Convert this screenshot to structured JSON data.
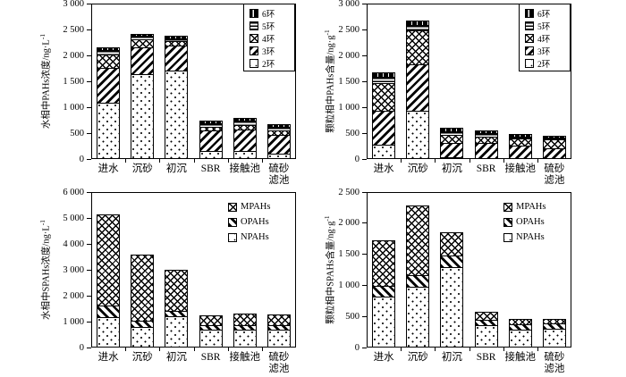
{
  "figure": {
    "background": "#ffffff",
    "ink": "#000000"
  },
  "chart_data": [
    {
      "type": "bar",
      "stacked": true,
      "position": "top-left",
      "ylabel": "水相中PAHs浓度/ng·L",
      "ylabel_sup": "-1",
      "ylim": [
        0,
        3000
      ],
      "ytick_values": [
        3000,
        2500,
        2000,
        1500,
        1000,
        500,
        0
      ],
      "ytick_labels": [
        "3 000",
        "2 500",
        "2 000",
        "1 500",
        "1 000",
        "500",
        "0"
      ],
      "grid": "off",
      "legend_boxed": true,
      "legend_position": "top-right",
      "categories": [
        "进水",
        "沉砂",
        "初沉",
        "SBR",
        "接触池",
        "硫砂\n滤池"
      ],
      "category_keys": [
        "inflow",
        "grit-tank",
        "primary-sed",
        "sbr",
        "contact-tank",
        "sand-filter"
      ],
      "legend": [
        {
          "label": "6环",
          "pattern": "blackv"
        },
        {
          "label": "5环",
          "pattern": "hlines"
        },
        {
          "label": "4环",
          "pattern": "cross"
        },
        {
          "label": "3环",
          "pattern": "diag-up"
        },
        {
          "label": "2环",
          "pattern": "dots"
        }
      ],
      "series": [
        {
          "key": "ring2",
          "name": "2环",
          "pattern": "dots",
          "values": [
            1100,
            1650,
            1730,
            180,
            170,
            120
          ]
        },
        {
          "key": "ring3",
          "name": "3环",
          "pattern": "diag-up",
          "values": [
            670,
            520,
            470,
            380,
            420,
            370
          ]
        },
        {
          "key": "ring4",
          "name": "4环",
          "pattern": "cross",
          "values": [
            270,
            160,
            100,
            80,
            90,
            80
          ]
        },
        {
          "key": "ring5",
          "name": "5环",
          "pattern": "hlines",
          "values": [
            80,
            60,
            50,
            60,
            75,
            70
          ]
        },
        {
          "key": "ring6",
          "name": "6环",
          "pattern": "blackv",
          "values": [
            40,
            25,
            25,
            35,
            45,
            35
          ]
        }
      ]
    },
    {
      "type": "bar",
      "stacked": true,
      "position": "top-right",
      "ylabel": "颗粒相中PAHs含量/ng·g",
      "ylabel_sup": "-1",
      "ylim": [
        0,
        3000
      ],
      "ytick_values": [
        3000,
        2500,
        2000,
        1500,
        1000,
        500,
        0
      ],
      "ytick_labels": [
        "3 000",
        "2 500",
        "2 000",
        "1 500",
        "1 000",
        "500",
        "0"
      ],
      "grid": "off",
      "legend_boxed": true,
      "legend_position": "top-right",
      "categories": [
        "进水",
        "沉砂",
        "初沉",
        "SBR",
        "接触池",
        "硫砂\n滤池"
      ],
      "category_keys": [
        "inflow",
        "grit-tank",
        "primary-sed",
        "sbr",
        "contact-tank",
        "sand-filter"
      ],
      "legend": [
        {
          "label": "6环",
          "pattern": "blackv"
        },
        {
          "label": "5环",
          "pattern": "hlines"
        },
        {
          "label": "4环",
          "pattern": "cross"
        },
        {
          "label": "3环",
          "pattern": "diag-up"
        },
        {
          "label": "2环",
          "pattern": "dots"
        }
      ],
      "series": [
        {
          "key": "ring2",
          "name": "2环",
          "pattern": "dots",
          "values": [
            300,
            950,
            50,
            40,
            25,
            20
          ]
        },
        {
          "key": "ring3",
          "name": "3环",
          "pattern": "diag-up",
          "values": [
            640,
            900,
            280,
            290,
            245,
            210
          ]
        },
        {
          "key": "ring4",
          "name": "4环",
          "pattern": "cross",
          "values": [
            550,
            650,
            155,
            125,
            145,
            165
          ]
        },
        {
          "key": "ring5",
          "name": "5环",
          "pattern": "hlines",
          "values": [
            110,
            100,
            70,
            55,
            40,
            40
          ]
        },
        {
          "key": "ring6",
          "name": "6环",
          "pattern": "blackv",
          "values": [
            80,
            75,
            40,
            45,
            30,
            20
          ]
        }
      ]
    },
    {
      "type": "bar",
      "stacked": true,
      "position": "bottom-left",
      "ylabel": "水相中SPAHs浓度/ng·L",
      "ylabel_sup": "-1",
      "ylim": [
        0,
        6000
      ],
      "ytick_values": [
        6000,
        5000,
        4000,
        3000,
        2000,
        1000,
        0
      ],
      "ytick_labels": [
        "6 000",
        "5 000",
        "4 000",
        "3 000",
        "2 000",
        "1 000",
        "0"
      ],
      "grid": "off",
      "legend_boxed": false,
      "legend_position": "top-right",
      "categories": [
        "进水",
        "沉砂",
        "初沉",
        "SBR",
        "接触池",
        "硫砂\n滤池"
      ],
      "category_keys": [
        "inflow",
        "grit-tank",
        "primary-sed",
        "sbr",
        "contact-tank",
        "sand-filter"
      ],
      "legend": [
        {
          "label": "MPAHs",
          "pattern": "cross"
        },
        {
          "label": "OPAHs",
          "pattern": "diag-down"
        },
        {
          "label": "NPAHs",
          "pattern": "dots"
        }
      ],
      "series": [
        {
          "key": "npahs",
          "name": "NPAHs",
          "pattern": "dots",
          "values": [
            1200,
            830,
            1230,
            740,
            710,
            730
          ]
        },
        {
          "key": "opahs",
          "name": "OPAHs",
          "pattern": "diag-down",
          "values": [
            450,
            250,
            210,
            160,
            190,
            170
          ]
        },
        {
          "key": "mpahs",
          "name": "MPAHs",
          "pattern": "cross",
          "values": [
            3500,
            2500,
            1560,
            330,
            400,
            380
          ]
        }
      ]
    },
    {
      "type": "bar",
      "stacked": true,
      "position": "bottom-right",
      "ylabel": "颗粒相中SPAHs含量/ng·g",
      "ylabel_sup": "-1",
      "ylim": [
        0,
        2500
      ],
      "ytick_values": [
        2500,
        2000,
        1500,
        1000,
        500,
        0
      ],
      "ytick_labels": [
        "2 500",
        "2 000",
        "1 500",
        "1 000",
        "500",
        "0"
      ],
      "grid": "off",
      "legend_boxed": false,
      "legend_position": "top-right",
      "categories": [
        "进水",
        "沉砂",
        "初沉",
        "SBR",
        "接触池",
        "硫砂\n滤池"
      ],
      "category_keys": [
        "inflow",
        "grit-tank",
        "primary-sed",
        "sbr",
        "contact-tank",
        "sand-filter"
      ],
      "legend": [
        {
          "label": "MPAHs",
          "pattern": "cross"
        },
        {
          "label": "OPAHs",
          "pattern": "diag-down"
        },
        {
          "label": "NPAHs",
          "pattern": "dots"
        }
      ],
      "series": [
        {
          "key": "npahs",
          "name": "NPAHs",
          "pattern": "dots",
          "values": [
            830,
            990,
            1310,
            370,
            300,
            320
          ]
        },
        {
          "key": "opahs",
          "name": "OPAHs",
          "pattern": "diag-down",
          "values": [
            170,
            190,
            190,
            90,
            90,
            80
          ]
        },
        {
          "key": "mpahs",
          "name": "MPAHs",
          "pattern": "cross",
          "values": [
            730,
            1110,
            350,
            120,
            75,
            60
          ]
        }
      ]
    }
  ]
}
